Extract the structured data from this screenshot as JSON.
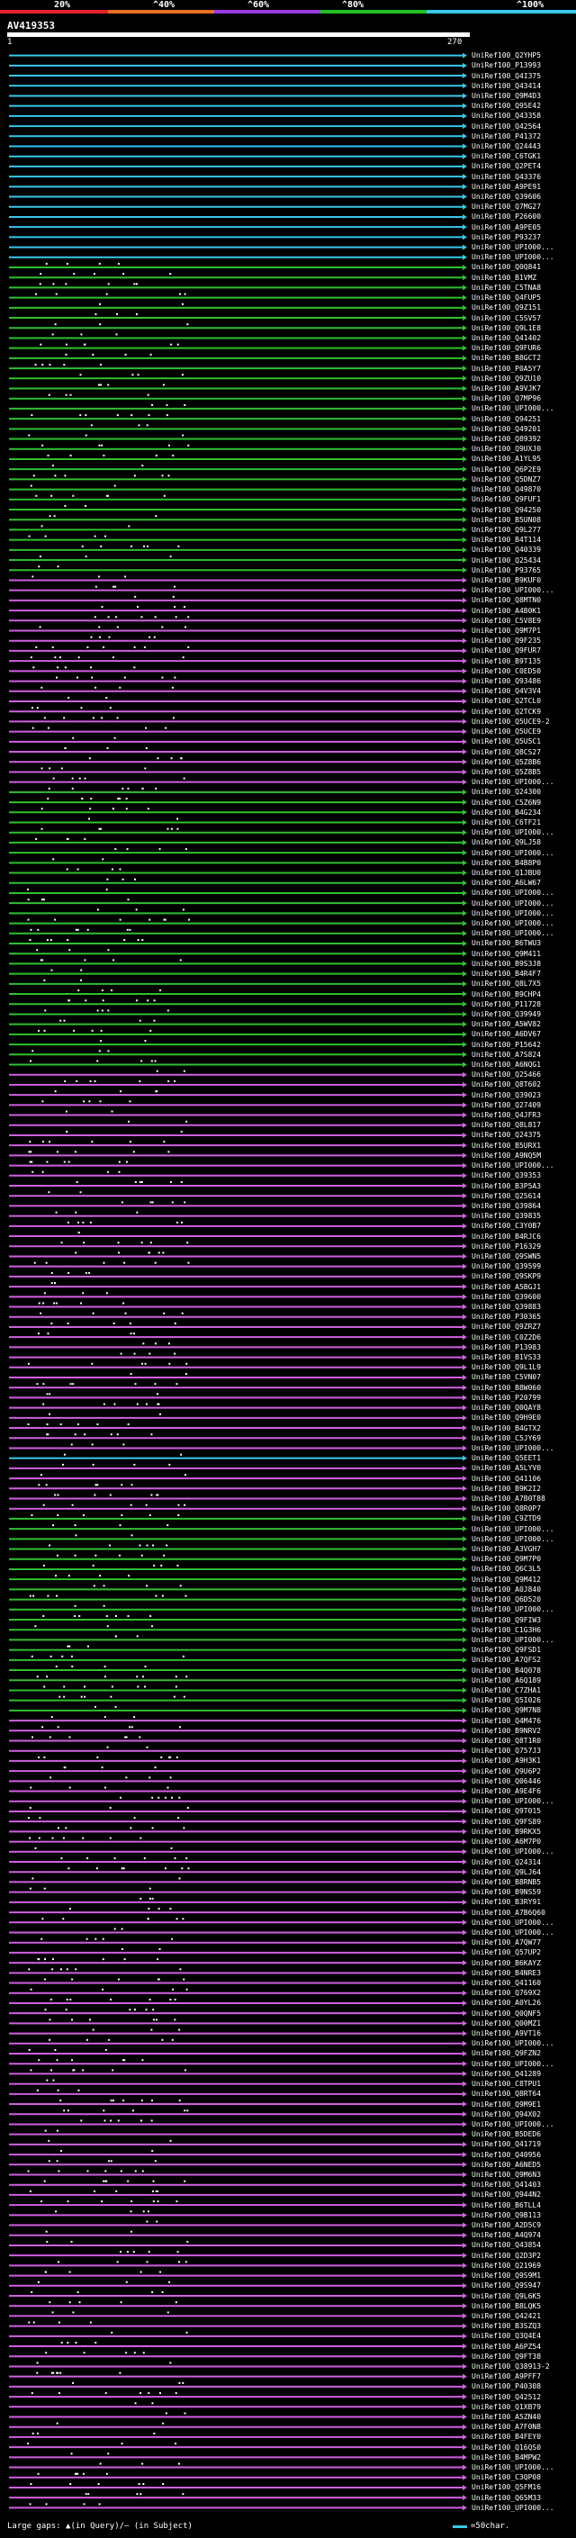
{
  "scale": {
    "ticks": [
      "20%",
      "^40%",
      "^60%",
      "^80%",
      "^100%"
    ],
    "colors": [
      "#e8202a",
      "#e87020",
      "#9a3ae0",
      "#20c020",
      "#38c8e8"
    ]
  },
  "query": {
    "name": "AV419353",
    "start": "1",
    "end": "270"
  },
  "hit_colors": {
    "cyan": "#38c8e8",
    "green": "#30c030",
    "magenta": "#d060e0",
    "red": "#e8202a"
  },
  "hits": [
    {
      "id": "UniRef100_Q2YHP5",
      "color": "cyan"
    },
    {
      "id": "UniRef100_P13993",
      "color": "cyan"
    },
    {
      "id": "UniRef100_Q4I375",
      "color": "cyan"
    },
    {
      "id": "UniRef100_Q43414",
      "color": "cyan"
    },
    {
      "id": "UniRef100_Q9M4D3",
      "color": "cyan"
    },
    {
      "id": "UniRef100_Q95E42",
      "color": "cyan"
    },
    {
      "id": "UniRef100_Q43358",
      "color": "cyan"
    },
    {
      "id": "UniRef100_Q42564",
      "color": "cyan"
    },
    {
      "id": "UniRef100_P41372",
      "color": "cyan"
    },
    {
      "id": "UniRef100_Q24443",
      "color": "cyan"
    },
    {
      "id": "UniRef100_C6TGK1",
      "color": "cyan"
    },
    {
      "id": "UniRef100_Q2PET4",
      "color": "cyan"
    },
    {
      "id": "UniRef100_Q43376",
      "color": "cyan"
    },
    {
      "id": "UniRef100_A9PE91",
      "color": "cyan"
    },
    {
      "id": "UniRef100_Q39606",
      "color": "cyan"
    },
    {
      "id": "UniRef100_Q7MG27",
      "color": "cyan"
    },
    {
      "id": "UniRef100_P26600",
      "color": "cyan"
    },
    {
      "id": "UniRef100_A9PE05",
      "color": "cyan"
    },
    {
      "id": "UniRef100_P93237",
      "color": "cyan"
    },
    {
      "id": "UniRef100_UPI000...",
      "color": "cyan"
    },
    {
      "id": "UniRef100_UPI000...",
      "color": "cyan"
    },
    {
      "id": "UniRef100_Q0Q841",
      "color": "green"
    },
    {
      "id": "UniRef100_B1VMZ",
      "color": "green"
    },
    {
      "id": "UniRef100_C5TNA8",
      "color": "green"
    },
    {
      "id": "UniRef100_Q4FUP5",
      "color": "green"
    },
    {
      "id": "UniRef100_Q9Z151",
      "color": "green"
    },
    {
      "id": "UniRef100_C5SV57",
      "color": "green"
    },
    {
      "id": "UniRef100_Q9L1E8",
      "color": "green"
    },
    {
      "id": "UniRef100_Q41402",
      "color": "green"
    },
    {
      "id": "UniRef100_Q9FUR6",
      "color": "green"
    },
    {
      "id": "UniRef100_B8GCT2",
      "color": "green"
    },
    {
      "id": "UniRef100_P0A5Y7",
      "color": "green"
    },
    {
      "id": "UniRef100_Q9ZU10",
      "color": "green"
    },
    {
      "id": "UniRef100_A9VJK7",
      "color": "green"
    },
    {
      "id": "UniRef100_Q7MP96",
      "color": "green"
    },
    {
      "id": "UniRef100_UPI000...",
      "color": "green"
    },
    {
      "id": "UniRef100_Q94251",
      "color": "green"
    },
    {
      "id": "UniRef100_Q49201",
      "color": "green"
    },
    {
      "id": "UniRef100_Q89392",
      "color": "green"
    },
    {
      "id": "UniRef100_Q9UXJ0",
      "color": "green"
    },
    {
      "id": "UniRef100_A1YL95",
      "color": "green"
    },
    {
      "id": "UniRef100_Q6P2E9",
      "color": "green"
    },
    {
      "id": "UniRef100_Q5DNZ7",
      "color": "green"
    },
    {
      "id": "UniRef100_Q49870",
      "color": "green"
    },
    {
      "id": "UniRef100_Q9FUF1",
      "color": "green"
    },
    {
      "id": "UniRef100_Q94250",
      "color": "green"
    },
    {
      "id": "UniRef100_B5UN08",
      "color": "green"
    },
    {
      "id": "UniRef100_Q9L277",
      "color": "green"
    },
    {
      "id": "UniRef100_B4T114",
      "color": "green"
    },
    {
      "id": "UniRef100_Q40339",
      "color": "green"
    },
    {
      "id": "UniRef100_Q25434",
      "color": "green"
    },
    {
      "id": "UniRef100_P93765",
      "color": "green"
    },
    {
      "id": "UniRef100_B9KUF0",
      "color": "magenta"
    },
    {
      "id": "UniRef100_UPI000...",
      "color": "magenta"
    },
    {
      "id": "UniRef100_Q8MTN0",
      "color": "magenta"
    },
    {
      "id": "UniRef100_A4B0K1",
      "color": "magenta"
    },
    {
      "id": "UniRef100_C5V8E9",
      "color": "magenta"
    },
    {
      "id": "UniRef100_Q9M7P1",
      "color": "magenta"
    },
    {
      "id": "UniRef100_Q9F235",
      "color": "magenta"
    },
    {
      "id": "UniRef100_Q9FUR7",
      "color": "magenta"
    },
    {
      "id": "UniRef100_B9T135",
      "color": "magenta"
    },
    {
      "id": "UniRef100_C0ED50",
      "color": "magenta"
    },
    {
      "id": "UniRef100_Q93486",
      "color": "magenta"
    },
    {
      "id": "UniRef100_Q4V3V4",
      "color": "magenta"
    },
    {
      "id": "UniRef100_Q2TCL0",
      "color": "magenta"
    },
    {
      "id": "UniRef100_Q2TCK9",
      "color": "magenta"
    },
    {
      "id": "UniRef100_Q5UCE9-2",
      "color": "magenta"
    },
    {
      "id": "UniRef100_Q5UCE9",
      "color": "magenta"
    },
    {
      "id": "UniRef100_Q5U5C1",
      "color": "magenta"
    },
    {
      "id": "UniRef100_Q8CS27",
      "color": "magenta"
    },
    {
      "id": "UniRef100_Q5Z8B6",
      "color": "magenta"
    },
    {
      "id": "UniRef100_Q5Z8B5",
      "color": "magenta"
    },
    {
      "id": "UniRef100_UPI000...",
      "color": "magenta"
    },
    {
      "id": "UniRef100_Q24300",
      "color": "green"
    },
    {
      "id": "UniRef100_C5Z6N9",
      "color": "green"
    },
    {
      "id": "UniRef100_B4G234",
      "color": "green"
    },
    {
      "id": "UniRef100_C6TF21",
      "color": "green"
    },
    {
      "id": "UniRef100_UPI000...",
      "color": "green"
    },
    {
      "id": "UniRef100_Q9LJ58",
      "color": "green"
    },
    {
      "id": "UniRef100_UPI000...",
      "color": "green"
    },
    {
      "id": "UniRef100_B4B8P0",
      "color": "green"
    },
    {
      "id": "UniRef100_Q1JBU0",
      "color": "green"
    },
    {
      "id": "UniRef100_A6LW67",
      "color": "green"
    },
    {
      "id": "UniRef100_UPI000...",
      "color": "green"
    },
    {
      "id": "UniRef100_UPI000...",
      "color": "green"
    },
    {
      "id": "UniRef100_UPI000...",
      "color": "green"
    },
    {
      "id": "UniRef100_UPI000...",
      "color": "green"
    },
    {
      "id": "UniRef100_UPI000...",
      "color": "green"
    },
    {
      "id": "UniRef100_B6TWU3",
      "color": "green"
    },
    {
      "id": "UniRef100_Q9M411",
      "color": "green"
    },
    {
      "id": "UniRef100_B9S3J8",
      "color": "green"
    },
    {
      "id": "UniRef100_B4R4F7",
      "color": "green"
    },
    {
      "id": "UniRef100_Q8L7X5",
      "color": "green"
    },
    {
      "id": "UniRef100_B9CHP4",
      "color": "green"
    },
    {
      "id": "UniRef100_P11728",
      "color": "green"
    },
    {
      "id": "UniRef100_Q39949",
      "color": "green"
    },
    {
      "id": "UniRef100_A5WV82",
      "color": "green"
    },
    {
      "id": "UniRef100_A6DV67",
      "color": "green"
    },
    {
      "id": "UniRef100_P15642",
      "color": "green"
    },
    {
      "id": "UniRef100_A7S824",
      "color": "green"
    },
    {
      "id": "UniRef100_A6NQG1",
      "color": "green"
    },
    {
      "id": "UniRef100_Q25466",
      "color": "magenta"
    },
    {
      "id": "UniRef100_Q8T602",
      "color": "magenta"
    },
    {
      "id": "UniRef100_Q39023",
      "color": "magenta"
    },
    {
      "id": "UniRef100_Q27409",
      "color": "magenta"
    },
    {
      "id": "UniRef100_Q4JFR3",
      "color": "magenta"
    },
    {
      "id": "UniRef100_Q8L817",
      "color": "magenta"
    },
    {
      "id": "UniRef100_Q24375",
      "color": "magenta"
    },
    {
      "id": "UniRef100_B5URX1",
      "color": "magenta"
    },
    {
      "id": "UniRef100_A9NQ5M",
      "color": "magenta"
    },
    {
      "id": "UniRef100_UPI000...",
      "color": "magenta"
    },
    {
      "id": "UniRef100_Q39353",
      "color": "magenta"
    },
    {
      "id": "UniRef100_B3P5A3",
      "color": "magenta"
    },
    {
      "id": "UniRef100_Q25614",
      "color": "magenta"
    },
    {
      "id": "UniRef100_Q39864",
      "color": "magenta"
    },
    {
      "id": "UniRef100_Q39835",
      "color": "magenta"
    },
    {
      "id": "UniRef100_C3Y0B7",
      "color": "magenta"
    },
    {
      "id": "UniRef100_B4RJC6",
      "color": "magenta"
    },
    {
      "id": "UniRef100_P16329",
      "color": "magenta"
    },
    {
      "id": "UniRef100_Q9SWN5",
      "color": "magenta"
    },
    {
      "id": "UniRef100_Q39599",
      "color": "magenta"
    },
    {
      "id": "UniRef100_Q9SKP9",
      "color": "magenta"
    },
    {
      "id": "UniRef100_A5BGJ1",
      "color": "magenta"
    },
    {
      "id": "UniRef100_Q39600",
      "color": "magenta"
    },
    {
      "id": "UniRef100_Q39883",
      "color": "magenta"
    },
    {
      "id": "UniRef100_P30365",
      "color": "magenta"
    },
    {
      "id": "UniRef100_Q9ZRZ7",
      "color": "magenta"
    },
    {
      "id": "UniRef100_C0Z2D6",
      "color": "magenta"
    },
    {
      "id": "UniRef100_P13983",
      "color": "magenta"
    },
    {
      "id": "UniRef100_B1VS33",
      "color": "magenta"
    },
    {
      "id": "UniRef100_Q9L1L9",
      "color": "magenta"
    },
    {
      "id": "UniRef100_C5VN07",
      "color": "magenta"
    },
    {
      "id": "UniRef100_B8W060",
      "color": "magenta"
    },
    {
      "id": "UniRef100_P20799",
      "color": "magenta"
    },
    {
      "id": "UniRef100_Q0QAY8",
      "color": "magenta"
    },
    {
      "id": "UniRef100_Q9H9E0",
      "color": "magenta"
    },
    {
      "id": "UniRef100_B4GTX2",
      "color": "magenta"
    },
    {
      "id": "UniRef100_C5JY69",
      "color": "magenta"
    },
    {
      "id": "UniRef100_UPI000...",
      "color": "magenta"
    },
    {
      "id": "UniRef100_Q5EET1",
      "color": "cyan"
    },
    {
      "id": "UniRef100_A5LYV0",
      "color": "magenta"
    },
    {
      "id": "UniRef100_Q41106",
      "color": "magenta"
    },
    {
      "id": "UniRef100_B9K2I2",
      "color": "magenta"
    },
    {
      "id": "UniRef100_A7B0T88",
      "color": "magenta"
    },
    {
      "id": "UniRef100_Q8R0P7",
      "color": "magenta"
    },
    {
      "id": "UniRef100_C9ZTD9",
      "color": "green"
    },
    {
      "id": "UniRef100_UPI000...",
      "color": "green"
    },
    {
      "id": "UniRef100_UPI000...",
      "color": "green"
    },
    {
      "id": "UniRef100_A3VGH7",
      "color": "green"
    },
    {
      "id": "UniRef100_Q9M7P0",
      "color": "green"
    },
    {
      "id": "UniRef100_Q6C3L5",
      "color": "green"
    },
    {
      "id": "UniRef100_Q9M412",
      "color": "green"
    },
    {
      "id": "UniRef100_A0J840",
      "color": "green"
    },
    {
      "id": "UniRef100_Q6D520",
      "color": "green"
    },
    {
      "id": "UniRef100_UPI000...",
      "color": "green"
    },
    {
      "id": "UniRef100_Q9FIW3",
      "color": "green"
    },
    {
      "id": "UniRef100_C1G3H6",
      "color": "green"
    },
    {
      "id": "UniRef100_UPI000...",
      "color": "green"
    },
    {
      "id": "UniRef100_Q9FSD1",
      "color": "green"
    },
    {
      "id": "UniRef100_A7QFS2",
      "color": "green"
    },
    {
      "id": "UniRef100_B4Q078",
      "color": "green"
    },
    {
      "id": "UniRef100_A6Q189",
      "color": "green"
    },
    {
      "id": "UniRef100_C7ZHA1",
      "color": "green"
    },
    {
      "id": "UniRef100_Q5I026",
      "color": "green"
    },
    {
      "id": "UniRef100_Q9M7N8",
      "color": "green"
    },
    {
      "id": "UniRef100_Q4M476",
      "color": "magenta"
    },
    {
      "id": "UniRef100_B9NRV2",
      "color": "magenta"
    },
    {
      "id": "UniRef100_Q8T1R0",
      "color": "magenta"
    },
    {
      "id": "UniRef100_Q757J3",
      "color": "magenta"
    },
    {
      "id": "UniRef100_A9H3K1",
      "color": "magenta"
    },
    {
      "id": "UniRef100_Q9U6P2",
      "color": "magenta"
    },
    {
      "id": "UniRef100_Q06446",
      "color": "magenta"
    },
    {
      "id": "UniRef100_A9E4F6",
      "color": "magenta"
    },
    {
      "id": "UniRef100_UPI000...",
      "color": "magenta"
    },
    {
      "id": "UniRef100_Q9T015",
      "color": "magenta"
    },
    {
      "id": "UniRef100_Q9FS89",
      "color": "magenta"
    },
    {
      "id": "UniRef100_B9RKX5",
      "color": "magenta"
    },
    {
      "id": "UniRef100_A6M7P0",
      "color": "magenta"
    },
    {
      "id": "UniRef100_UPI000...",
      "color": "magenta"
    },
    {
      "id": "UniRef100_Q24314",
      "color": "magenta"
    },
    {
      "id": "UniRef100_Q9LJ64",
      "color": "magenta"
    },
    {
      "id": "UniRef100_B8RNB5",
      "color": "magenta"
    },
    {
      "id": "UniRef100_B9NS59",
      "color": "magenta"
    },
    {
      "id": "UniRef100_B3RY91",
      "color": "magenta"
    },
    {
      "id": "UniRef100_A7B6Q60",
      "color": "magenta"
    },
    {
      "id": "UniRef100_UPI000...",
      "color": "magenta"
    },
    {
      "id": "UniRef100_UPI000...",
      "color": "magenta"
    },
    {
      "id": "UniRef100_A7QW77",
      "color": "magenta"
    },
    {
      "id": "UniRef100_Q57UP2",
      "color": "magenta"
    },
    {
      "id": "UniRef100_B6KAYZ",
      "color": "magenta"
    },
    {
      "id": "UniRef100_B4NRE3",
      "color": "magenta"
    },
    {
      "id": "UniRef100_Q41160",
      "color": "magenta"
    },
    {
      "id": "UniRef100_Q769X2",
      "color": "magenta"
    },
    {
      "id": "UniRef100_A0YL26",
      "color": "magenta"
    },
    {
      "id": "UniRef100_Q0QNF5",
      "color": "magenta"
    },
    {
      "id": "UniRef100_Q00MZ1",
      "color": "magenta"
    },
    {
      "id": "UniRef100_A9VT16",
      "color": "magenta"
    },
    {
      "id": "UniRef100_UPI000...",
      "color": "magenta"
    },
    {
      "id": "UniRef100_Q9FZN2",
      "color": "magenta"
    },
    {
      "id": "UniRef100_UPI000...",
      "color": "magenta"
    },
    {
      "id": "UniRef100_Q41289",
      "color": "magenta"
    },
    {
      "id": "UniRef100_C8TPU1",
      "color": "magenta"
    },
    {
      "id": "UniRef100_Q8RT64",
      "color": "magenta"
    },
    {
      "id": "UniRef100_Q9M9E1",
      "color": "magenta"
    },
    {
      "id": "UniRef100_Q94X02",
      "color": "magenta"
    },
    {
      "id": "UniRef100_UPI000...",
      "color": "magenta"
    },
    {
      "id": "UniRef100_B5DED6",
      "color": "magenta"
    },
    {
      "id": "UniRef100_Q41719",
      "color": "magenta"
    },
    {
      "id": "UniRef100_Q40956",
      "color": "magenta"
    },
    {
      "id": "UniRef100_A6NED5",
      "color": "magenta"
    },
    {
      "id": "UniRef100_Q9M6N3",
      "color": "magenta"
    },
    {
      "id": "UniRef100_Q41403",
      "color": "magenta"
    },
    {
      "id": "UniRef100_Q944N2",
      "color": "magenta"
    },
    {
      "id": "UniRef100_B6TLL4",
      "color": "magenta"
    },
    {
      "id": "UniRef100_Q9B113",
      "color": "magenta"
    },
    {
      "id": "UniRef100_A2D5C9",
      "color": "magenta"
    },
    {
      "id": "UniRef100_A4Q974",
      "color": "magenta"
    },
    {
      "id": "UniRef100_Q43854",
      "color": "magenta"
    },
    {
      "id": "UniRef100_Q2D3P2",
      "color": "magenta"
    },
    {
      "id": "UniRef100_Q21969",
      "color": "magenta"
    },
    {
      "id": "UniRef100_Q9S9M1",
      "color": "magenta"
    },
    {
      "id": "UniRef100_Q9S947",
      "color": "magenta"
    },
    {
      "id": "UniRef100_Q9L6K5",
      "color": "magenta"
    },
    {
      "id": "UniRef100_B8LQK5",
      "color": "magenta"
    },
    {
      "id": "UniRef100_Q42421",
      "color": "magenta"
    },
    {
      "id": "UniRef100_B3SZQ3",
      "color": "magenta"
    },
    {
      "id": "UniRef100_Q3Q4E4",
      "color": "magenta"
    },
    {
      "id": "UniRef100_A6PZ54",
      "color": "magenta"
    },
    {
      "id": "UniRef100_Q9FT38",
      "color": "magenta"
    },
    {
      "id": "UniRef100_Q38913-2",
      "color": "magenta"
    },
    {
      "id": "UniRef100_A9PFF7",
      "color": "magenta"
    },
    {
      "id": "UniRef100_P40308",
      "color": "magenta"
    },
    {
      "id": "UniRef100_Q42512",
      "color": "magenta"
    },
    {
      "id": "UniRef100_Q1XB79",
      "color": "magenta"
    },
    {
      "id": "UniRef100_A5ZN40",
      "color": "magenta"
    },
    {
      "id": "UniRef100_A7F0N8",
      "color": "magenta"
    },
    {
      "id": "UniRef100_B4FEY0",
      "color": "magenta"
    },
    {
      "id": "UniRef100_Q16QS0",
      "color": "magenta"
    },
    {
      "id": "UniRef100_B4MPW2",
      "color": "magenta"
    },
    {
      "id": "UniRef100_UPI000...",
      "color": "magenta"
    },
    {
      "id": "UniRef100_C3QP08",
      "color": "magenta"
    },
    {
      "id": "UniRef100_Q5FM16",
      "color": "magenta"
    },
    {
      "id": "UniRef100_Q65M33",
      "color": "magenta"
    },
    {
      "id": "UniRef100_UPI000...",
      "color": "magenta"
    }
  ],
  "legend": {
    "text": "Large gaps: ▲(in Query)/— (in Subject)",
    "scale_label": "=50char."
  }
}
